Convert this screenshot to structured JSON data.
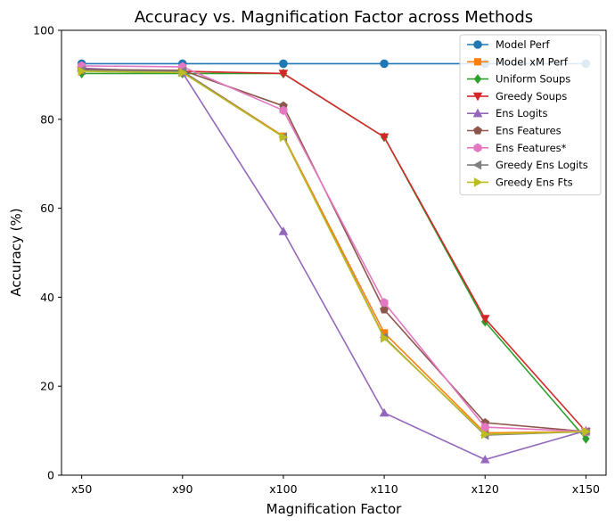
{
  "chart_data": {
    "type": "line",
    "title": "Accuracy vs. Magnification Factor across Methods",
    "xlabel": "Magnification Factor",
    "ylabel": "Accuracy (%)",
    "categories": [
      "x50",
      "x90",
      "x100",
      "x110",
      "x120",
      "x150"
    ],
    "ylim": [
      0,
      100
    ],
    "yticks": [
      0,
      20,
      40,
      60,
      80,
      100
    ],
    "grid": false,
    "legend_position": "top-right",
    "series": [
      {
        "name": "Model Perf",
        "color": "#1f77b4",
        "marker": "circle",
        "values": [
          92.5,
          92.5,
          92.5,
          92.5,
          92.5,
          92.5
        ]
      },
      {
        "name": "Model xM Perf",
        "color": "#ff7f0e",
        "marker": "square",
        "values": [
          91.0,
          90.8,
          76.2,
          32.0,
          9.5,
          9.8
        ]
      },
      {
        "name": "Uniform Soups",
        "color": "#2ca02c",
        "marker": "diamond",
        "values": [
          90.3,
          90.3,
          90.3,
          76.0,
          34.5,
          8.2
        ]
      },
      {
        "name": "Greedy Soups",
        "color": "#d62728",
        "marker": "triangle-down",
        "values": [
          91.0,
          90.8,
          90.3,
          76.0,
          35.2,
          9.8
        ]
      },
      {
        "name": "Ens Logits",
        "color": "#9467bd",
        "marker": "triangle-up",
        "values": [
          91.5,
          90.5,
          54.8,
          14.0,
          3.5,
          10.0
        ]
      },
      {
        "name": "Ens Features",
        "color": "#8c564b",
        "marker": "pentagon",
        "values": [
          91.2,
          91.0,
          83.0,
          37.2,
          11.8,
          9.8
        ]
      },
      {
        "name": "Ens Features*",
        "color": "#e377c2",
        "marker": "hexagon",
        "values": [
          92.0,
          91.8,
          82.0,
          38.8,
          10.8,
          9.8
        ]
      },
      {
        "name": "Greedy Ens Logits",
        "color": "#7f7f7f",
        "marker": "triangle-left",
        "values": [
          91.0,
          90.8,
          76.0,
          31.0,
          9.0,
          9.8
        ]
      },
      {
        "name": "Greedy Ens Fts",
        "color": "#bcbd22",
        "marker": "triangle-right",
        "values": [
          90.8,
          90.5,
          76.0,
          30.8,
          9.2,
          9.8
        ]
      }
    ]
  }
}
